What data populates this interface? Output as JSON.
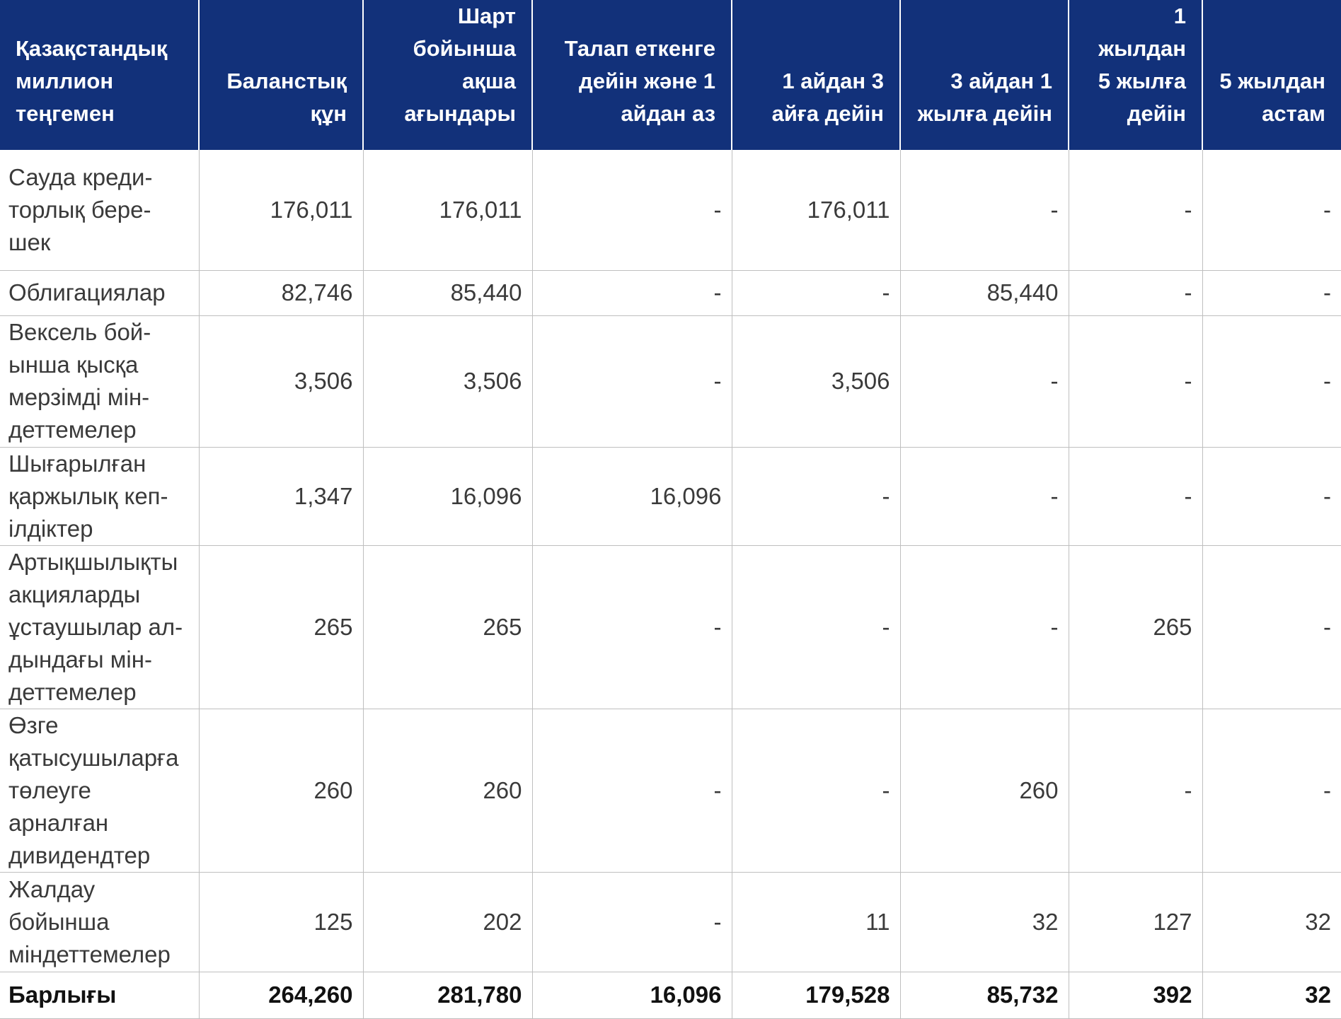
{
  "table": {
    "headers": [
      "Қазақстандық миллион теңгемен",
      "Баланстық құн",
      "Шарт бойынша ақша ағындары",
      "Талап еткенге дейін және 1 айдан аз",
      "1 айдан 3 айға дейін",
      "3 айдан 1 жылға дейін",
      "1 жылдан 5 жылға дейін",
      "5 жылдан астам"
    ],
    "rows": [
      [
        "Сауда креди-торлық бере-шек",
        "176,011",
        "176,011",
        "-",
        "176,011",
        "-",
        "-",
        "-"
      ],
      [
        "Облигациялар",
        "82,746",
        "85,440",
        "-",
        "-",
        "85,440",
        "-",
        "-"
      ],
      [
        "Вексель бой-ынша қысқа мерзімді мін-деттемелер",
        "3,506",
        "3,506",
        "-",
        "3,506",
        "-",
        "-",
        "-"
      ],
      [
        "Шығарылған қаржылық кеп-ілдіктер",
        "1,347",
        "16,096",
        "16,096",
        "-",
        "-",
        "-",
        "-"
      ],
      [
        "Артықшылықты акцияларды ұстаушылар ал-дындағы мін-деттемелер",
        "265",
        "265",
        "-",
        "-",
        "-",
        "265",
        "-"
      ],
      [
        "Өзге қатысушыларға төлеуге арналған дивидендтер",
        "260",
        "260",
        "-",
        "-",
        "260",
        "-",
        "-"
      ],
      [
        "Жалдау бойынша міндеттемелер",
        "125",
        "202",
        "-",
        "11",
        "32",
        "127",
        "32"
      ]
    ],
    "total": [
      "Барлығы",
      "264,260",
      "281,780",
      "16,096",
      "179,528",
      "85,732",
      "392",
      "32"
    ]
  }
}
